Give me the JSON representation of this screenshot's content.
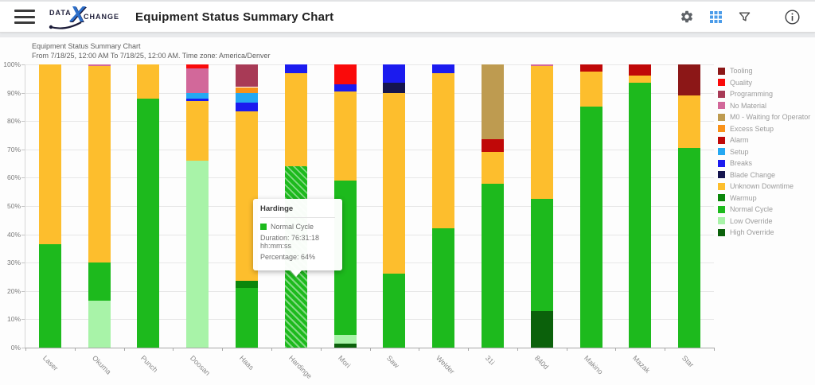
{
  "header": {
    "title": "Equipment Status Summary Chart",
    "logo": {
      "data": "DATA",
      "x": "X",
      "change": "CHANGE"
    }
  },
  "chart_header": {
    "line1": "Equipment Status Summary Chart",
    "line2": "From 7/18/25, 12:00 AM To 7/18/25, 12:00 AM. Time zone: America/Denver"
  },
  "tooltip": {
    "title": "Hardinge",
    "series": "Normal Cycle",
    "duration_line": "Duration: 76:31:18 hh:mm:ss",
    "percentage_line": "Percentage: 64%",
    "swatch_status": "Normal Cycle"
  },
  "chart_data": {
    "type": "bar",
    "stacked": true,
    "ylim": [
      0,
      100
    ],
    "grid": true,
    "legend_position": "right",
    "y_ticks": [
      "0%",
      "10%",
      "20%",
      "30%",
      "40%",
      "50%",
      "60%",
      "70%",
      "80%",
      "90%",
      "100%"
    ],
    "categories": [
      "Laser",
      "Okuma",
      "Punch",
      "Doosan",
      "Haas",
      "Hardinge",
      "Mori",
      "Saw",
      "Welder",
      "31i",
      "840d",
      "Makino",
      "Mazak",
      "Star"
    ],
    "status_colors": {
      "Tooling": "#8c1717",
      "Quality": "#fa0a0a",
      "Programming": "#a83a56",
      "No Material": "#d2689a",
      "M0 - Waiting for Operator": "#be9b50",
      "Excess Setup": "#f99219",
      "Alarm": "#c00808",
      "Setup": "#25a8f2",
      "Breaks": "#1b1bef",
      "Blade Change": "#15154e",
      "Unknown Downtime": "#fdbe2d",
      "Warmup": "#0b860b",
      "Normal Cycle": "#1dba1d",
      "Low Override": "#a8f3a8",
      "High Override": "#0b610b"
    },
    "legend_order": [
      "Tooling",
      "Quality",
      "Programming",
      "No Material",
      "M0 - Waiting for Operator",
      "Excess Setup",
      "Alarm",
      "Setup",
      "Breaks",
      "Blade Change",
      "Unknown Downtime",
      "Warmup",
      "Normal Cycle",
      "Low Override",
      "High Override"
    ],
    "bars": [
      {
        "name": "Laser",
        "segments": [
          {
            "status": "Normal Cycle",
            "pct": 36.5
          },
          {
            "status": "Unknown Downtime",
            "pct": 63.5
          }
        ]
      },
      {
        "name": "Okuma",
        "segments": [
          {
            "status": "Low Override",
            "pct": 16.5
          },
          {
            "status": "Normal Cycle",
            "pct": 13.5
          },
          {
            "status": "Unknown Downtime",
            "pct": 69.5
          },
          {
            "status": "No Material",
            "pct": 0.5
          }
        ]
      },
      {
        "name": "Punch",
        "segments": [
          {
            "status": "Normal Cycle",
            "pct": 88
          },
          {
            "status": "Unknown Downtime",
            "pct": 12
          }
        ]
      },
      {
        "name": "Doosan",
        "segments": [
          {
            "status": "Low Override",
            "pct": 66
          },
          {
            "status": "Unknown Downtime",
            "pct": 21
          },
          {
            "status": "Breaks",
            "pct": 1
          },
          {
            "status": "Setup",
            "pct": 2
          },
          {
            "status": "No Material",
            "pct": 8.5
          },
          {
            "status": "Quality",
            "pct": 1.5
          }
        ]
      },
      {
        "name": "Haas",
        "segments": [
          {
            "status": "Normal Cycle",
            "pct": 21
          },
          {
            "status": "Warmup",
            "pct": 2.5
          },
          {
            "status": "Unknown Downtime",
            "pct": 60
          },
          {
            "status": "Breaks",
            "pct": 3
          },
          {
            "status": "Setup",
            "pct": 3.5
          },
          {
            "status": "Excess Setup",
            "pct": 2
          },
          {
            "status": "Programming",
            "pct": 8
          }
        ]
      },
      {
        "name": "Hardinge",
        "segments": [
          {
            "status": "Normal Cycle",
            "pct": 64,
            "hatched": true
          },
          {
            "status": "Unknown Downtime",
            "pct": 33
          },
          {
            "status": "Breaks",
            "pct": 3
          }
        ]
      },
      {
        "name": "Mori",
        "segments": [
          {
            "status": "High Override",
            "pct": 1.5
          },
          {
            "status": "Low Override",
            "pct": 3
          },
          {
            "status": "Normal Cycle",
            "pct": 54.5
          },
          {
            "status": "Unknown Downtime",
            "pct": 31.5
          },
          {
            "status": "Breaks",
            "pct": 2.5
          },
          {
            "status": "Quality",
            "pct": 7
          }
        ]
      },
      {
        "name": "Saw",
        "segments": [
          {
            "status": "Normal Cycle",
            "pct": 26
          },
          {
            "status": "Unknown Downtime",
            "pct": 64
          },
          {
            "status": "Blade Change",
            "pct": 3.5
          },
          {
            "status": "Breaks",
            "pct": 6.5
          }
        ]
      },
      {
        "name": "Welder",
        "segments": [
          {
            "status": "Normal Cycle",
            "pct": 42
          },
          {
            "status": "Unknown Downtime",
            "pct": 55
          },
          {
            "status": "Breaks",
            "pct": 3
          }
        ]
      },
      {
        "name": "31i",
        "segments": [
          {
            "status": "Normal Cycle",
            "pct": 58
          },
          {
            "status": "Unknown Downtime",
            "pct": 11
          },
          {
            "status": "Alarm",
            "pct": 4.5
          },
          {
            "status": "M0 - Waiting for Operator",
            "pct": 26.5
          }
        ]
      },
      {
        "name": "840d",
        "segments": [
          {
            "status": "High Override",
            "pct": 13
          },
          {
            "status": "Normal Cycle",
            "pct": 39.5
          },
          {
            "status": "Unknown Downtime",
            "pct": 47
          },
          {
            "status": "No Material",
            "pct": 0.5
          }
        ]
      },
      {
        "name": "Makino",
        "segments": [
          {
            "status": "Normal Cycle",
            "pct": 85
          },
          {
            "status": "Unknown Downtime",
            "pct": 12.5
          },
          {
            "status": "Alarm",
            "pct": 2.5
          }
        ]
      },
      {
        "name": "Mazak",
        "segments": [
          {
            "status": "Normal Cycle",
            "pct": 93.5
          },
          {
            "status": "Unknown Downtime",
            "pct": 2.5
          },
          {
            "status": "Alarm",
            "pct": 4
          }
        ]
      },
      {
        "name": "Star",
        "segments": [
          {
            "status": "Normal Cycle",
            "pct": 70.5
          },
          {
            "status": "Unknown Downtime",
            "pct": 18.5
          },
          {
            "status": "Tooling",
            "pct": 11
          }
        ]
      }
    ]
  }
}
